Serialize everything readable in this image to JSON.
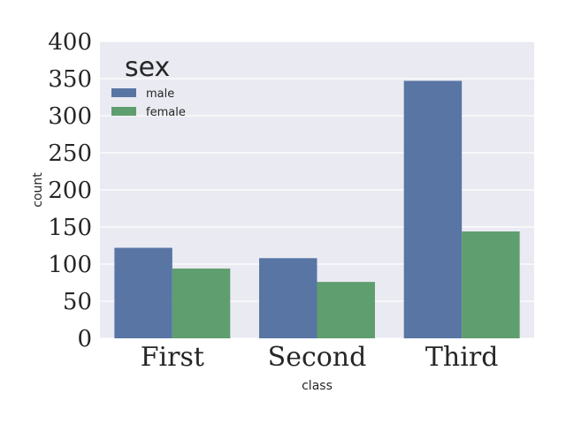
{
  "chart_data": {
    "type": "bar",
    "title": "",
    "xlabel": "class",
    "ylabel": "count",
    "categories": [
      "First",
      "Second",
      "Third"
    ],
    "series": [
      {
        "name": "male",
        "values": [
          122,
          108,
          347
        ],
        "color": "#5875a4"
      },
      {
        "name": "female",
        "values": [
          94,
          76,
          144
        ],
        "color": "#5f9e6e"
      }
    ],
    "ylim": [
      0,
      400
    ],
    "yticks": [
      "0",
      "50",
      "100",
      "150",
      "200",
      "250",
      "300",
      "350",
      "400"
    ],
    "legend": {
      "title": "sex",
      "placement": "top-left"
    },
    "grid": true,
    "colors": {
      "background": "#eaeaf2",
      "grid": "#ffffff"
    }
  }
}
